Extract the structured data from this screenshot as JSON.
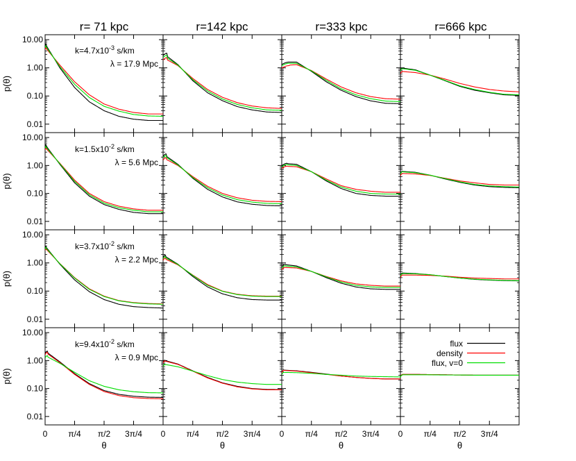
{
  "figure": {
    "column_titles": [
      "r= 71 kpc",
      "r=142 kpc",
      "r=333 kpc",
      "r=666 kpc"
    ],
    "row_annotations": [
      {
        "k": "k=4.7x10",
        "k_exp": "-3",
        "k_unit": " s/km",
        "lambda": "λ = 17.9 Mpc"
      },
      {
        "k": "k=1.5x10",
        "k_exp": "-2",
        "k_unit": " s/km",
        "lambda": "λ =  5.6 Mpc"
      },
      {
        "k": "k=3.7x10",
        "k_exp": "-2",
        "k_unit": " s/km",
        "lambda": "λ =  2.2 Mpc"
      },
      {
        "k": "k=9.4x10",
        "k_exp": "-2",
        "k_unit": " s/km",
        "lambda": "λ =  0.9 Mpc"
      }
    ],
    "ylabel": "p(θ)",
    "xlabel": "θ",
    "ytick_labels": [
      "10.00",
      "1.00",
      "0.10",
      "0.01"
    ],
    "xtick_labels": [
      "0",
      "π/4",
      "π/2",
      "3π/4"
    ],
    "legend": [
      {
        "label": "flux",
        "color": "#000000"
      },
      {
        "label": "density",
        "color": "#ff0000"
      },
      {
        "label": "flux, v=0",
        "color": "#00dd00"
      }
    ]
  },
  "chart_data": {
    "type": "line",
    "layout": "4x4 panel grid",
    "xlabel": "θ",
    "ylabel": "p(θ)",
    "xlim": [
      0,
      3.1416
    ],
    "ylim": [
      0.005,
      15
    ],
    "yscale": "log",
    "yticks": [
      10,
      1,
      0.1,
      0.01
    ],
    "xticks": [
      0,
      0.7854,
      1.5708,
      2.3562
    ],
    "grid": false,
    "legend_position": "bottom-right panel, right",
    "series_colors": {
      "flux": "#000000",
      "density": "#ff0000",
      "flux, v=0": "#00dd00"
    },
    "curve_points_theta": [
      0,
      0.3927,
      0.7854,
      1.1781,
      1.5708,
      1.9635,
      2.3562,
      2.7489,
      3.1416
    ],
    "panels": [
      {
        "row": 0,
        "col": 0,
        "peak_theta": 0.03,
        "flux": [
          7.2,
          1.0,
          0.2,
          0.062,
          0.03,
          0.019,
          0.015,
          0.0135,
          0.0135
        ],
        "density": [
          5.4,
          1.25,
          0.32,
          0.11,
          0.052,
          0.034,
          0.026,
          0.023,
          0.023
        ],
        "flux_v0": [
          6.3,
          1.1,
          0.26,
          0.088,
          0.043,
          0.029,
          0.022,
          0.0195,
          0.019
        ]
      },
      {
        "row": 0,
        "col": 1,
        "peak_theta": 0.1,
        "flux": [
          3.3,
          1.3,
          0.35,
          0.13,
          0.068,
          0.042,
          0.032,
          0.027,
          0.026
        ],
        "density": [
          2.3,
          1.2,
          0.42,
          0.17,
          0.09,
          0.058,
          0.044,
          0.038,
          0.036
        ],
        "flux_v0": [
          2.8,
          1.25,
          0.38,
          0.15,
          0.078,
          0.05,
          0.038,
          0.032,
          0.031
        ]
      },
      {
        "row": 0,
        "col": 2,
        "peak_theta": 0.2,
        "flux": [
          1.6,
          1.6,
          0.75,
          0.32,
          0.16,
          0.095,
          0.067,
          0.055,
          0.053
        ],
        "density": [
          1.2,
          1.3,
          0.8,
          0.4,
          0.21,
          0.13,
          0.095,
          0.08,
          0.077
        ],
        "flux_v0": [
          1.45,
          1.45,
          0.78,
          0.36,
          0.18,
          0.11,
          0.08,
          0.066,
          0.063
        ]
      },
      {
        "row": 0,
        "col": 3,
        "peak_theta": 0.05,
        "flux": [
          1.0,
          0.85,
          0.55,
          0.35,
          0.22,
          0.16,
          0.13,
          0.11,
          0.105
        ],
        "density": [
          0.75,
          0.68,
          0.55,
          0.4,
          0.28,
          0.21,
          0.17,
          0.15,
          0.14
        ],
        "flux_v0": [
          0.95,
          0.82,
          0.55,
          0.36,
          0.23,
          0.17,
          0.135,
          0.115,
          0.11
        ]
      },
      {
        "row": 1,
        "col": 0,
        "peak_theta": 0.03,
        "flux": [
          5.6,
          1.1,
          0.24,
          0.08,
          0.04,
          0.027,
          0.021,
          0.019,
          0.019
        ],
        "density": [
          4.4,
          1.2,
          0.3,
          0.1,
          0.051,
          0.035,
          0.028,
          0.025,
          0.025
        ],
        "flux_v0": [
          5.0,
          1.15,
          0.27,
          0.09,
          0.045,
          0.031,
          0.025,
          0.022,
          0.022
        ]
      },
      {
        "row": 1,
        "col": 1,
        "peak_theta": 0.08,
        "flux": [
          2.6,
          1.1,
          0.35,
          0.14,
          0.075,
          0.05,
          0.041,
          0.037,
          0.036
        ],
        "density": [
          1.9,
          1.0,
          0.4,
          0.18,
          0.1,
          0.07,
          0.057,
          0.052,
          0.051
        ],
        "flux_v0": [
          2.3,
          1.05,
          0.37,
          0.16,
          0.088,
          0.06,
          0.049,
          0.044,
          0.043
        ]
      },
      {
        "row": 1,
        "col": 2,
        "peak_theta": 0.15,
        "flux": [
          1.2,
          1.1,
          0.6,
          0.28,
          0.15,
          0.1,
          0.085,
          0.08,
          0.08
        ],
        "density": [
          0.95,
          0.9,
          0.6,
          0.33,
          0.19,
          0.14,
          0.12,
          0.11,
          0.11
        ],
        "flux_v0": [
          1.1,
          1.0,
          0.6,
          0.3,
          0.17,
          0.12,
          0.1,
          0.095,
          0.095
        ]
      },
      {
        "row": 1,
        "col": 3,
        "peak_theta": 0.05,
        "flux": [
          0.62,
          0.57,
          0.45,
          0.33,
          0.25,
          0.2,
          0.175,
          0.165,
          0.16
        ],
        "density": [
          0.52,
          0.5,
          0.44,
          0.35,
          0.28,
          0.24,
          0.21,
          0.2,
          0.2
        ],
        "flux_v0": [
          0.6,
          0.55,
          0.45,
          0.34,
          0.26,
          0.21,
          0.185,
          0.175,
          0.17
        ]
      },
      {
        "row": 2,
        "col": 0,
        "peak_theta": 0.03,
        "flux": [
          4.0,
          0.9,
          0.25,
          0.095,
          0.05,
          0.034,
          0.028,
          0.026,
          0.025
        ],
        "density": [
          3.4,
          0.95,
          0.3,
          0.12,
          0.066,
          0.046,
          0.039,
          0.036,
          0.035
        ],
        "flux_v0": [
          3.7,
          0.93,
          0.29,
          0.115,
          0.064,
          0.045,
          0.038,
          0.035,
          0.034
        ]
      },
      {
        "row": 2,
        "col": 1,
        "peak_theta": 0.06,
        "flux": [
          1.9,
          0.9,
          0.33,
          0.14,
          0.08,
          0.058,
          0.05,
          0.048,
          0.048
        ],
        "density": [
          1.5,
          0.85,
          0.37,
          0.17,
          0.1,
          0.077,
          0.068,
          0.066,
          0.066
        ],
        "flux_v0": [
          1.7,
          0.88,
          0.36,
          0.16,
          0.098,
          0.075,
          0.066,
          0.064,
          0.064
        ]
      },
      {
        "row": 2,
        "col": 2,
        "peak_theta": 0.1,
        "flux": [
          0.9,
          0.78,
          0.5,
          0.3,
          0.19,
          0.14,
          0.12,
          0.115,
          0.115
        ],
        "density": [
          0.7,
          0.66,
          0.5,
          0.33,
          0.23,
          0.18,
          0.16,
          0.15,
          0.15
        ],
        "flux_v0": [
          0.8,
          0.72,
          0.5,
          0.32,
          0.21,
          0.16,
          0.14,
          0.135,
          0.135
        ]
      },
      {
        "row": 2,
        "col": 3,
        "peak_theta": 0.05,
        "flux": [
          0.44,
          0.42,
          0.38,
          0.33,
          0.29,
          0.26,
          0.245,
          0.235,
          0.23
        ],
        "density": [
          0.37,
          0.37,
          0.36,
          0.34,
          0.31,
          0.29,
          0.28,
          0.27,
          0.27
        ],
        "flux_v0": [
          0.42,
          0.41,
          0.38,
          0.33,
          0.29,
          0.265,
          0.25,
          0.24,
          0.235
        ]
      },
      {
        "row": 3,
        "col": 0,
        "peak_theta": 0.06,
        "flux": [
          2.2,
          0.9,
          0.34,
          0.15,
          0.085,
          0.062,
          0.053,
          0.049,
          0.048
        ],
        "density": [
          2.0,
          0.85,
          0.32,
          0.14,
          0.078,
          0.056,
          0.047,
          0.044,
          0.043
        ],
        "flux_v0": [
          1.5,
          0.8,
          0.38,
          0.19,
          0.12,
          0.09,
          0.077,
          0.071,
          0.07
        ]
      },
      {
        "row": 3,
        "col": 1,
        "peak_theta": 0.05,
        "flux": [
          1.05,
          0.75,
          0.43,
          0.25,
          0.16,
          0.12,
          0.1,
          0.093,
          0.092
        ],
        "density": [
          1.0,
          0.73,
          0.42,
          0.24,
          0.155,
          0.115,
          0.097,
          0.09,
          0.09
        ],
        "flux_v0": [
          0.75,
          0.6,
          0.42,
          0.29,
          0.21,
          0.17,
          0.15,
          0.14,
          0.14
        ]
      },
      {
        "row": 3,
        "col": 2,
        "peak_theta": 0.05,
        "flux": [
          0.46,
          0.43,
          0.38,
          0.33,
          0.28,
          0.25,
          0.23,
          0.22,
          0.22
        ],
        "density": [
          0.45,
          0.42,
          0.37,
          0.32,
          0.28,
          0.25,
          0.23,
          0.22,
          0.22
        ],
        "flux_v0": [
          0.38,
          0.37,
          0.35,
          0.32,
          0.3,
          0.28,
          0.27,
          0.265,
          0.26
        ]
      },
      {
        "row": 3,
        "col": 3,
        "peak_theta": 0.05,
        "flux": [
          0.32,
          0.32,
          0.315,
          0.31,
          0.305,
          0.3,
          0.3,
          0.3,
          0.3
        ],
        "density": [
          0.32,
          0.32,
          0.315,
          0.31,
          0.305,
          0.3,
          0.3,
          0.3,
          0.3
        ],
        "flux_v0": [
          0.31,
          0.31,
          0.31,
          0.305,
          0.305,
          0.3,
          0.3,
          0.3,
          0.3
        ]
      }
    ]
  }
}
